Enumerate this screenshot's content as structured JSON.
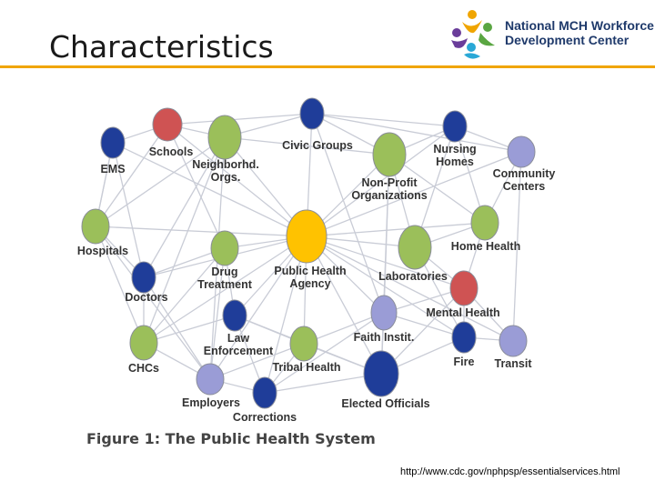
{
  "slide": {
    "title": "Characteristics"
  },
  "logo": {
    "line1_a": "National ",
    "line1_b": "MCH",
    "line1_c": " Workforce",
    "line2": "Development Center"
  },
  "figure": {
    "caption": "Figure 1: The Public Health System",
    "colors": {
      "green": "#9bbf5a",
      "navy": "#1f3d99",
      "red": "#cf5353",
      "lavender": "#9a9cd6",
      "yellow": "#ffc200",
      "edge": "#c9ccd6"
    },
    "nodes": [
      {
        "id": "schools",
        "label": [
          "Schools"
        ],
        "color": "red"
      },
      {
        "id": "ems",
        "label": [
          "EMS"
        ],
        "color": "navy"
      },
      {
        "id": "neighborhd",
        "label": [
          "Neighborhd.",
          "Orgs."
        ],
        "color": "green"
      },
      {
        "id": "civic",
        "label": [
          "Civic Groups"
        ],
        "color": "navy"
      },
      {
        "id": "nonprofit",
        "label": [
          "Non-Profit",
          "Organizations"
        ],
        "color": "green"
      },
      {
        "id": "nursing",
        "label": [
          "Nursing",
          "Homes"
        ],
        "color": "navy"
      },
      {
        "id": "community",
        "label": [
          "Community",
          "Centers"
        ],
        "color": "lavender"
      },
      {
        "id": "hospitals",
        "label": [
          "Hospitals"
        ],
        "color": "green"
      },
      {
        "id": "doctors",
        "label": [
          "Doctors"
        ],
        "color": "navy"
      },
      {
        "id": "drug",
        "label": [
          "Drug",
          "Treatment"
        ],
        "color": "green"
      },
      {
        "id": "pha",
        "label": [
          "Public Health",
          "Agency"
        ],
        "color": "yellow"
      },
      {
        "id": "labs",
        "label": [
          "Laboratories"
        ],
        "color": "green"
      },
      {
        "id": "homehealth",
        "label": [
          "Home Health"
        ],
        "color": "green"
      },
      {
        "id": "mental",
        "label": [
          "Mental Health"
        ],
        "color": "red"
      },
      {
        "id": "law",
        "label": [
          "Law",
          "Enforcement"
        ],
        "color": "navy"
      },
      {
        "id": "faith",
        "label": [
          "Faith Instit."
        ],
        "color": "lavender"
      },
      {
        "id": "chcs",
        "label": [
          "CHCs"
        ],
        "color": "green"
      },
      {
        "id": "tribal",
        "label": [
          "Tribal Health"
        ],
        "color": "green"
      },
      {
        "id": "fire",
        "label": [
          "Fire"
        ],
        "color": "navy"
      },
      {
        "id": "transit",
        "label": [
          "Transit"
        ],
        "color": "lavender"
      },
      {
        "id": "employers",
        "label": [
          "Employers"
        ],
        "color": "lavender"
      },
      {
        "id": "corrections",
        "label": [
          "Corrections"
        ],
        "color": "navy"
      },
      {
        "id": "elected",
        "label": [
          "Elected Officials"
        ],
        "color": "navy"
      }
    ],
    "edges": [
      [
        "pha",
        "schools"
      ],
      [
        "pha",
        "ems"
      ],
      [
        "pha",
        "neighborhd"
      ],
      [
        "pha",
        "civic"
      ],
      [
        "pha",
        "nonprofit"
      ],
      [
        "pha",
        "nursing"
      ],
      [
        "pha",
        "community"
      ],
      [
        "pha",
        "hospitals"
      ],
      [
        "pha",
        "doctors"
      ],
      [
        "pha",
        "drug"
      ],
      [
        "pha",
        "labs"
      ],
      [
        "pha",
        "homehealth"
      ],
      [
        "pha",
        "mental"
      ],
      [
        "pha",
        "law"
      ],
      [
        "pha",
        "faith"
      ],
      [
        "pha",
        "chcs"
      ],
      [
        "pha",
        "tribal"
      ],
      [
        "pha",
        "fire"
      ],
      [
        "pha",
        "transit"
      ],
      [
        "pha",
        "employers"
      ],
      [
        "pha",
        "corrections"
      ],
      [
        "pha",
        "elected"
      ],
      [
        "ems",
        "schools"
      ],
      [
        "schools",
        "neighborhd"
      ],
      [
        "neighborhd",
        "civic"
      ],
      [
        "civic",
        "nonprofit"
      ],
      [
        "nonprofit",
        "nursing"
      ],
      [
        "nursing",
        "community"
      ],
      [
        "community",
        "homehealth"
      ],
      [
        "homehealth",
        "mental"
      ],
      [
        "mental",
        "transit"
      ],
      [
        "transit",
        "fire"
      ],
      [
        "fire",
        "elected"
      ],
      [
        "elected",
        "corrections"
      ],
      [
        "corrections",
        "employers"
      ],
      [
        "employers",
        "chcs"
      ],
      [
        "chcs",
        "hospitals"
      ],
      [
        "hospitals",
        "ems"
      ],
      [
        "ems",
        "hospitals"
      ],
      [
        "hospitals",
        "doctors"
      ],
      [
        "doctors",
        "chcs"
      ],
      [
        "doctors",
        "drug"
      ],
      [
        "drug",
        "law"
      ],
      [
        "law",
        "tribal"
      ],
      [
        "tribal",
        "elected"
      ],
      [
        "faith",
        "elected"
      ],
      [
        "faith",
        "mental"
      ],
      [
        "labs",
        "mental"
      ],
      [
        "labs",
        "homehealth"
      ],
      [
        "labs",
        "nonprofit"
      ],
      [
        "nonprofit",
        "faith"
      ],
      [
        "nonprofit",
        "elected"
      ],
      [
        "nursing",
        "homehealth"
      ],
      [
        "community",
        "transit"
      ],
      [
        "civic",
        "faith"
      ],
      [
        "civic",
        "nursing"
      ],
      [
        "schools",
        "hospitals"
      ],
      [
        "schools",
        "drug"
      ],
      [
        "neighborhd",
        "doctors"
      ],
      [
        "neighborhd",
        "chcs"
      ],
      [
        "neighborhd",
        "employers"
      ],
      [
        "drug",
        "employers"
      ],
      [
        "law",
        "corrections"
      ],
      [
        "tribal",
        "corrections"
      ],
      [
        "tribal",
        "faith"
      ],
      [
        "hospitals",
        "employers"
      ],
      [
        "chcs",
        "law"
      ],
      [
        "elected",
        "mental"
      ],
      [
        "ems",
        "doctors"
      ],
      [
        "neighborhd",
        "nonprofit"
      ],
      [
        "civic",
        "community"
      ],
      [
        "drug",
        "chcs"
      ],
      [
        "fire",
        "mental"
      ],
      [
        "labs",
        "fire"
      ],
      [
        "nursing",
        "labs"
      ],
      [
        "schools",
        "civic"
      ],
      [
        "doctors",
        "employers"
      ],
      [
        "law",
        "elected"
      ],
      [
        "employers",
        "tribal"
      ],
      [
        "hospitals",
        "neighborhd"
      ],
      [
        "nonprofit",
        "homehealth"
      ],
      [
        "faith",
        "fire"
      ],
      [
        "corrections",
        "faith"
      ]
    ]
  },
  "source": {
    "url": "http://www.cdc.gov/nphpsp/essentialservices.html"
  }
}
